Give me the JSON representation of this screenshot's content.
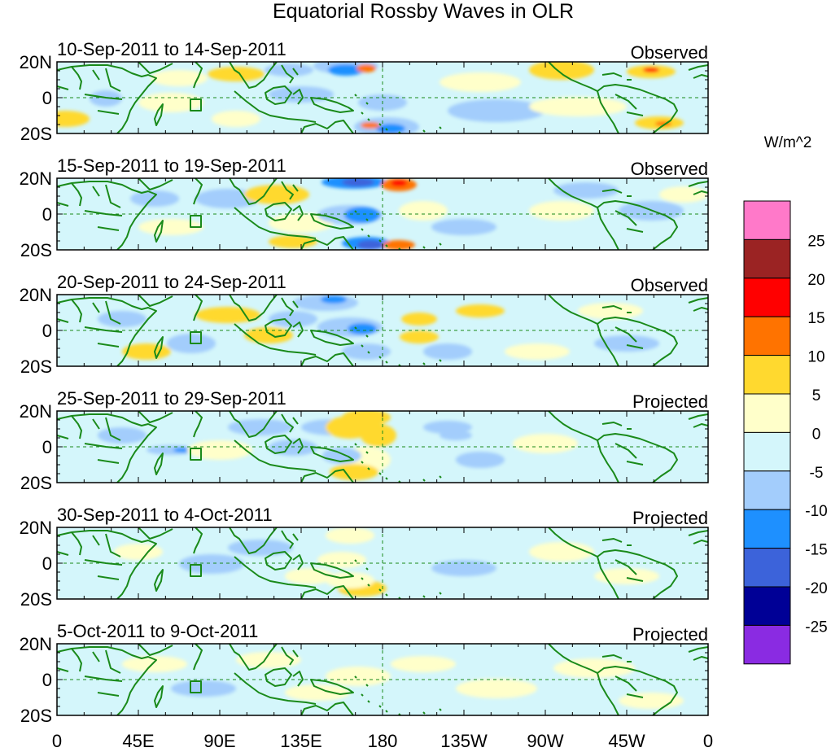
{
  "title": "Equatorial Rossby Waves in OLR",
  "colorbar": {
    "units": "W/m^2",
    "levels": [
      "25",
      "20",
      "15",
      "10",
      "5",
      "0",
      "-5",
      "-10",
      "-15",
      "-20",
      "-25"
    ],
    "colors": [
      "#ff79c9",
      "#9b2323",
      "#ff0000",
      "#ff7300",
      "#ffd92f",
      "#ffffca",
      "#d4f6fb",
      "#a3cdfc",
      "#1e90ff",
      "#3c63da",
      "#000096",
      "#8a2be2"
    ]
  },
  "xaxis": {
    "ticks": [
      "0",
      "45E",
      "90E",
      "135E",
      "180",
      "135W",
      "90W",
      "45W",
      "0"
    ]
  },
  "yaxis": {
    "ticks": [
      "20N",
      "0",
      "20S"
    ]
  },
  "panels": [
    {
      "dates": "10-Sep-2011 to 14-Sep-2011",
      "kind": "Observed"
    },
    {
      "dates": "15-Sep-2011 to 19-Sep-2011",
      "kind": "Observed"
    },
    {
      "dates": "20-Sep-2011 to 24-Sep-2011",
      "kind": "Observed"
    },
    {
      "dates": "25-Sep-2011 to 29-Sep-2011",
      "kind": "Projected"
    },
    {
      "dates": "30-Sep-2011 to 4-Oct-2011",
      "kind": "Projected"
    },
    {
      "dates": "5-Oct-2011 to 9-Oct-2011",
      "kind": "Projected"
    }
  ],
  "style": {
    "coast": "#1a8a1a",
    "grid": "#1a8a1a",
    "background": "#d4f6fb"
  }
}
